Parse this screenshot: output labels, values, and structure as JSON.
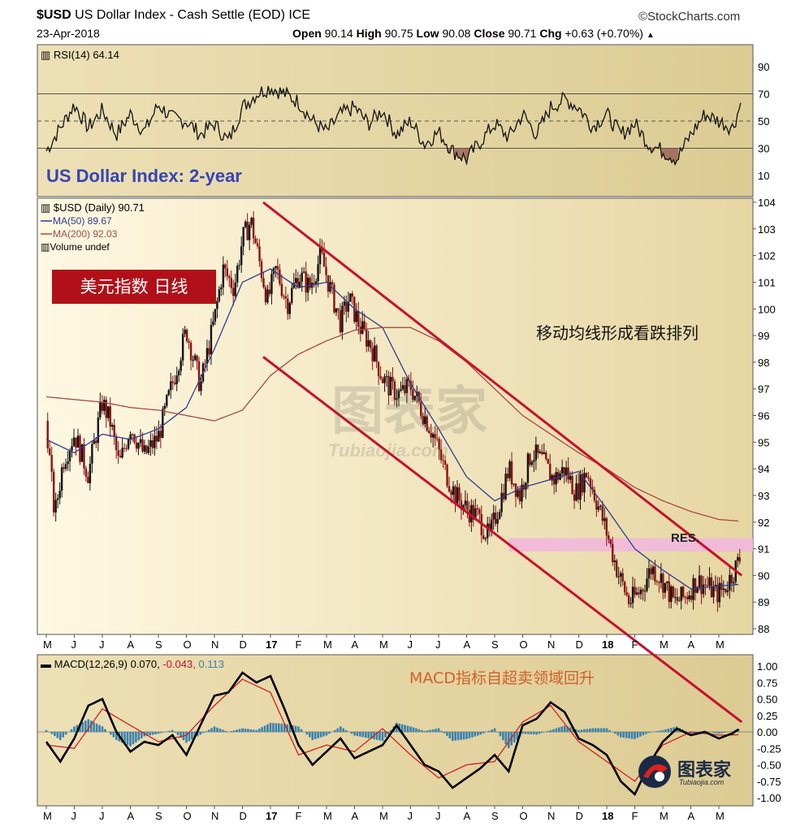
{
  "header": {
    "symbol": "$USD",
    "name": "US Dollar Index - Cash Settle (EOD)",
    "exchange": "ICE",
    "date": "23-Apr-2018",
    "source": "©StockCharts.com",
    "quote": {
      "open_label": "Open",
      "open": "90.14",
      "high_label": "High",
      "high": "90.75",
      "low_label": "Low",
      "low": "90.08",
      "close_label": "Close",
      "close": "90.71",
      "chg_label": "Chg",
      "chg": "+0.63 (+0.70%)"
    }
  },
  "legends": {
    "rsi": "RSI(14) 64.14",
    "price_title": "US Dollar Index: 2-year",
    "price_series": "$USD (Daily) 90.71",
    "ma50": "MA(50) 89.67",
    "ma200": "MA(200) 92.03",
    "volume": "Volume undef",
    "macd_label": "MACD(12,26,9)",
    "macd_value": "0.070,",
    "macd_signal": "-0.043,",
    "macd_hist": "0.113"
  },
  "annotations": {
    "box_cn": "美元指数  日线",
    "ma_cn": "移动均线形成看跌排列",
    "macd_cn": "MACD指标自超卖领域回升",
    "res": "RES.",
    "watermark": "图表家",
    "watermark_sub": "Tubiaojia.com",
    "logo": "图表家",
    "logo_sub": "Tubiaojia.com"
  },
  "colors": {
    "panel_bg": "#ede0b3",
    "channel": "#c8102e",
    "ma50": "#2e3d90",
    "ma200": "#a64a48",
    "res_zone": "#f2b8dd",
    "macd_hist": "#3a82ad",
    "rsi_fill": "#4a7a4a",
    "title_blue": "#3545b5",
    "macd_text_orange": "#d0602a"
  },
  "chart_data": [
    {
      "type": "line",
      "name": "rsi",
      "ylim": [
        10,
        90
      ],
      "ticks": [
        90,
        70,
        50,
        30,
        10
      ],
      "reference_lines": [
        70,
        50,
        30
      ],
      "x_month_index": [
        0,
        0.5,
        1,
        1.5,
        2,
        2.5,
        3,
        3.5,
        4,
        4.5,
        5,
        5.5,
        6,
        6.5,
        7,
        7.5,
        8,
        8.5,
        9,
        9.5,
        10,
        10.5,
        11,
        11.5,
        12,
        12.5,
        13,
        13.5,
        14,
        14.5,
        15,
        15.5,
        16,
        16.5,
        17,
        17.5,
        18,
        18.5,
        19,
        19.5,
        20,
        20.5,
        21,
        21.5,
        22,
        22.5,
        23,
        23.5,
        24,
        24.5,
        24.8
      ],
      "values": [
        28,
        45,
        62,
        45,
        58,
        40,
        55,
        42,
        62,
        52,
        50,
        40,
        48,
        35,
        60,
        70,
        75,
        70,
        64,
        50,
        42,
        55,
        60,
        48,
        58,
        40,
        50,
        33,
        42,
        28,
        22,
        35,
        48,
        38,
        55,
        40,
        60,
        66,
        60,
        46,
        55,
        40,
        48,
        33,
        28,
        22,
        40,
        55,
        50,
        45,
        64
      ]
    },
    {
      "type": "line",
      "name": "price",
      "title": "US Dollar Index: 2-year",
      "ylim": [
        88,
        104
      ],
      "ticks": [
        104,
        103,
        102,
        101,
        100,
        99,
        98,
        97,
        96,
        95,
        94,
        93,
        92,
        91,
        90,
        89,
        88
      ],
      "x_labels": [
        "M",
        "J",
        "J",
        "A",
        "S",
        "O",
        "N",
        "D",
        "17",
        "F",
        "M",
        "A",
        "M",
        "J",
        "J",
        "A",
        "S",
        "O",
        "N",
        "D",
        "18",
        "F",
        "M",
        "A",
        "M"
      ],
      "series": [
        {
          "name": "$USD (Daily) 90.71",
          "x_month_index": [
            0,
            0.3,
            0.6,
            1,
            1.5,
            2,
            2.3,
            2.6,
            3,
            3.5,
            4,
            4.5,
            5,
            5.5,
            6,
            6.3,
            6.7,
            7,
            7.3,
            7.6,
            7.9,
            8.2,
            8.6,
            9,
            9.4,
            9.8,
            10.2,
            10.5,
            10.8,
            11.2,
            11.6,
            12,
            12.3,
            12.6,
            13,
            13.4,
            13.8,
            14.2,
            14.6,
            15,
            15.4,
            15.8,
            16.2,
            16.5,
            16.9,
            17.3,
            17.7,
            18.1,
            18.5,
            18.9,
            19.3,
            19.7,
            20,
            20.4,
            20.8,
            21.2,
            21.6,
            22,
            22.4,
            22.8,
            23.2,
            23.6,
            23.9,
            24.2,
            24.5,
            24.8
          ],
          "values": [
            95.8,
            92.2,
            94.3,
            95.3,
            93.8,
            96.5,
            95.7,
            94.1,
            95.6,
            94.5,
            95.2,
            97.2,
            99.2,
            97.1,
            99.6,
            101.5,
            100.8,
            102.6,
            103.3,
            101.8,
            100.3,
            101.5,
            100.2,
            101.3,
            100.8,
            102.0,
            100.5,
            99.5,
            100.4,
            99.3,
            98.6,
            97.4,
            97.0,
            96.8,
            97.1,
            96.2,
            95.3,
            94.0,
            93.0,
            92.5,
            92.2,
            91.4,
            92.8,
            94.0,
            93.0,
            94.6,
            94.3,
            93.6,
            94.0,
            93.1,
            93.9,
            92.6,
            91.6,
            90.1,
            89.0,
            89.4,
            90.3,
            89.8,
            89.0,
            89.2,
            89.8,
            89.6,
            89.3,
            89.5,
            90.1,
            90.71
          ]
        },
        {
          "name": "MA(50) 89.67",
          "x_month_index": [
            0,
            1,
            2,
            3,
            4,
            5,
            6,
            7,
            8,
            9,
            10,
            11,
            12,
            13,
            14,
            15,
            16,
            17,
            18,
            19,
            20,
            21,
            22,
            23,
            24,
            24.8
          ],
          "values": [
            95.1,
            94.6,
            95.3,
            95.1,
            95.5,
            96.3,
            98.5,
            101.0,
            101.5,
            100.8,
            101.0,
            100.0,
            99.3,
            97.2,
            95.5,
            93.7,
            92.8,
            93.3,
            93.6,
            93.9,
            92.5,
            91.0,
            90.2,
            89.5,
            89.6,
            89.67
          ]
        },
        {
          "name": "MA(200) 92.03",
          "x_month_index": [
            0,
            1,
            2,
            3,
            4,
            5,
            6,
            7,
            8,
            9,
            10,
            11,
            12,
            13,
            14,
            15,
            16,
            17,
            18,
            19,
            20,
            21,
            22,
            23,
            24,
            24.8
          ],
          "values": [
            96.7,
            96.6,
            96.5,
            96.3,
            96.2,
            96.0,
            95.8,
            96.2,
            97.5,
            98.3,
            98.8,
            99.2,
            99.3,
            99.3,
            98.8,
            98.0,
            97.0,
            96.0,
            95.3,
            94.6,
            94.0,
            93.3,
            92.8,
            92.4,
            92.1,
            92.03
          ]
        }
      ],
      "resistance_zone": [
        90.9,
        91.4
      ],
      "channel_lines": [
        {
          "x_month_index": [
            8,
            24.7
          ],
          "values": [
            104,
            90.0
          ]
        },
        {
          "x_month_index": [
            8,
            24.7
          ],
          "values": [
            98.2,
            84.5
          ]
        }
      ]
    },
    {
      "type": "line",
      "name": "macd",
      "ylim": [
        -1.0,
        1.0
      ],
      "ticks": [
        "1.00",
        "0.75",
        "0.50",
        "0.25",
        "0.00",
        "-0.25",
        "-0.50",
        "-0.75",
        "-1.00"
      ],
      "x_labels": [
        "M",
        "J",
        "J",
        "A",
        "S",
        "O",
        "N",
        "D",
        "17",
        "F",
        "M",
        "A",
        "M",
        "J",
        "J",
        "A",
        "S",
        "O",
        "N",
        "D",
        "18",
        "F",
        "M",
        "A",
        "M"
      ],
      "series": [
        {
          "name": "MACD",
          "x_month_index": [
            0,
            0.5,
            1,
            1.5,
            2,
            2.5,
            3,
            3.5,
            4,
            4.5,
            5,
            5.5,
            6,
            6.5,
            7,
            7.5,
            8,
            8.5,
            9,
            9.5,
            10,
            10.5,
            11,
            11.5,
            12,
            12.5,
            13,
            13.5,
            14,
            14.5,
            15,
            15.5,
            16,
            16.5,
            17,
            17.5,
            18,
            18.5,
            19,
            19.5,
            20,
            20.5,
            21,
            21.5,
            22,
            22.5,
            23,
            23.5,
            24,
            24.5,
            24.8
          ],
          "values": [
            -0.15,
            -0.45,
            -0.1,
            0.4,
            0.5,
            0.0,
            -0.3,
            -0.15,
            -0.2,
            -0.05,
            -0.35,
            0.1,
            0.55,
            0.6,
            0.9,
            0.75,
            0.85,
            0.35,
            -0.2,
            -0.5,
            -0.3,
            -0.1,
            -0.4,
            -0.3,
            -0.2,
            0.1,
            -0.2,
            -0.5,
            -0.6,
            -0.85,
            -0.7,
            -0.55,
            -0.35,
            -0.6,
            0.1,
            0.2,
            0.45,
            0.3,
            -0.1,
            -0.2,
            -0.35,
            -0.75,
            -0.95,
            -0.5,
            -0.15,
            0.05,
            -0.05,
            0.0,
            -0.1,
            -0.02,
            0.07
          ]
        },
        {
          "name": "Signal",
          "x_month_index": [
            0,
            1,
            2,
            3,
            4,
            5,
            6,
            7,
            8,
            9,
            10,
            11,
            12,
            13,
            14,
            15,
            16,
            17,
            18,
            19,
            20,
            21,
            22,
            23,
            24,
            24.8
          ],
          "values": [
            -0.2,
            -0.25,
            0.35,
            0.1,
            -0.15,
            -0.05,
            0.4,
            0.8,
            0.6,
            -0.35,
            -0.2,
            -0.3,
            0.05,
            -0.35,
            -0.7,
            -0.5,
            -0.45,
            0.15,
            0.4,
            -0.15,
            -0.45,
            -0.75,
            -0.2,
            0.0,
            -0.05,
            -0.043
          ]
        }
      ]
    }
  ]
}
